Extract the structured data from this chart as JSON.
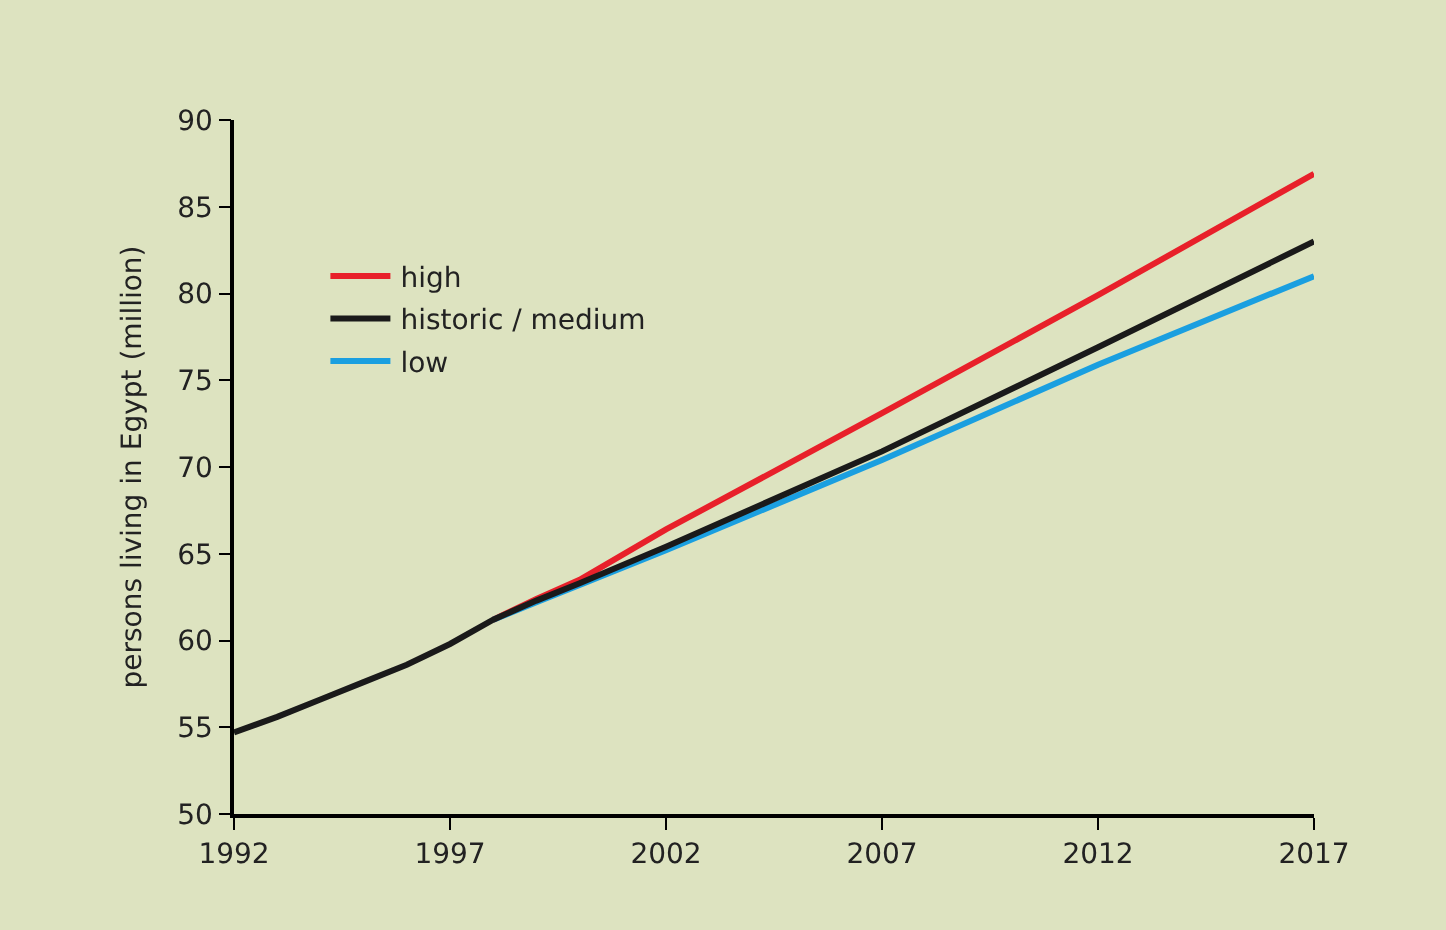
{
  "chart_data": {
    "type": "line",
    "ylabel": "persons living in Egypt (million)",
    "xlim": [
      1992,
      2017
    ],
    "xticks": [
      1992,
      1997,
      2002,
      2007,
      2012,
      2017
    ],
    "ylim": [
      50,
      90
    ],
    "yticks": [
      50,
      55,
      60,
      65,
      70,
      75,
      80,
      85,
      90
    ],
    "grid": false,
    "legend": "top left",
    "marker": "none",
    "line_style": "solid",
    "series": [
      {
        "name": "high",
        "color": "#e8202a",
        "x": [
          1998,
          1999,
          2000,
          2002,
          2007,
          2012,
          2017
        ],
        "values": [
          61.2,
          62.4,
          63.5,
          66.4,
          73.1,
          79.9,
          86.9
        ]
      },
      {
        "name": "historic / medium",
        "color": "#1a1a1a",
        "x": [
          1992,
          1993,
          1994,
          1995,
          1996,
          1997,
          1998,
          1999,
          2000,
          2002,
          2007,
          2012,
          2017
        ],
        "values": [
          54.7,
          55.6,
          56.6,
          57.6,
          58.6,
          59.8,
          61.2,
          62.3,
          63.3,
          65.4,
          70.9,
          76.9,
          83.0
        ]
      },
      {
        "name": "low",
        "color": "#1a9fe0",
        "x": [
          1998,
          1999,
          2000,
          2002,
          2007,
          2012,
          2017
        ],
        "values": [
          61.2,
          62.2,
          63.2,
          65.2,
          70.4,
          75.9,
          81.0
        ]
      }
    ]
  }
}
